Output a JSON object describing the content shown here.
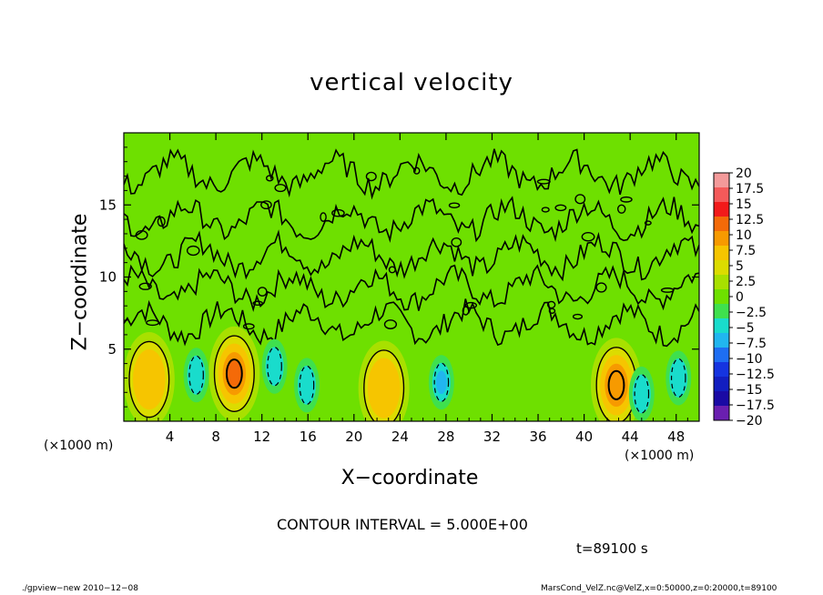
{
  "chart_data": {
    "type": "heatmap",
    "title": "vertical velocity",
    "xlabel": "X−coordinate",
    "ylabel": "Z−coordinate",
    "x_unit_label": "(×1000 m)",
    "x_ticks": [
      4,
      8,
      12,
      16,
      20,
      24,
      28,
      32,
      36,
      40,
      44,
      48
    ],
    "y_ticks": [
      5,
      10,
      15
    ],
    "xlim": [
      0,
      50
    ],
    "ylim": [
      0,
      20
    ],
    "colorbar_labels": [
      "20",
      "17.5",
      "15",
      "12.5",
      "10",
      "7.5",
      "5",
      "2.5",
      "0",
      "−2.5",
      "−5",
      "−7.5",
      "−10",
      "−12.5",
      "−15",
      "−17.5",
      "−20"
    ],
    "colorbar_colors": [
      "#f39a9a",
      "#f45a5a",
      "#f21a1a",
      "#f46a08",
      "#f79a00",
      "#f6c500",
      "#dcdc00",
      "#a8e000",
      "#6ee000",
      "#3fe04e",
      "#19dccc",
      "#21b6ef",
      "#1e6ef2",
      "#1534e0",
      "#121ec0",
      "#1a0aa4",
      "#6a1fb0"
    ],
    "features": [
      {
        "x": 2.2,
        "z": 2.9,
        "value": 7.5,
        "kind": "updraft"
      },
      {
        "x": 9.6,
        "z": 3.3,
        "value": 12.5,
        "kind": "updraft"
      },
      {
        "x": 22.6,
        "z": 2.3,
        "value": 7.5,
        "kind": "updraft"
      },
      {
        "x": 42.8,
        "z": 2.5,
        "value": 10,
        "kind": "updraft"
      },
      {
        "x": 6.3,
        "z": 3.2,
        "value": -5,
        "kind": "downdraft"
      },
      {
        "x": 13.1,
        "z": 3.8,
        "value": -5,
        "kind": "downdraft"
      },
      {
        "x": 15.9,
        "z": 2.5,
        "value": -5,
        "kind": "downdraft"
      },
      {
        "x": 27.6,
        "z": 2.7,
        "value": -7.5,
        "kind": "downdraft"
      },
      {
        "x": 45.0,
        "z": 1.9,
        "value": -5,
        "kind": "downdraft"
      },
      {
        "x": 48.2,
        "z": 3.0,
        "value": -5,
        "kind": "downdraft"
      }
    ]
  },
  "annotations": {
    "contour_interval": "CONTOUR INTERVAL = 5.000E+00",
    "time": "t=89100 s",
    "footer_left": "./gpview−new  2010−12−08",
    "footer_right": "MarsCond_VelZ.nc@VelZ,x=0:50000,z=0:20000,t=89100"
  }
}
